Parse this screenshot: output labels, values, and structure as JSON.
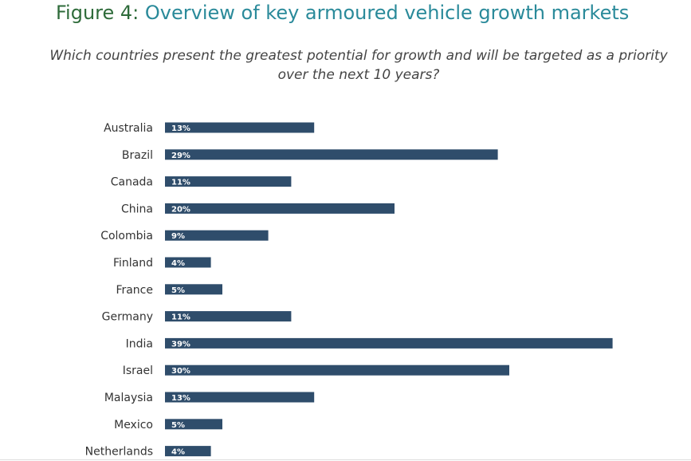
{
  "header": {
    "figure_label": "Figure 4:",
    "title": "Overview of key armoured vehicle growth markets",
    "subtitle": "Which countries present the greatest potential for growth and will be targeted as a priority over the next 10 years?"
  },
  "colors": {
    "bar": "#2f4d6b",
    "figure_label": "#2e6b3a",
    "title": "#2a8a9a"
  },
  "chart_data": {
    "type": "bar",
    "orientation": "horizontal",
    "categories": [
      "Australia",
      "Brazil",
      "Canada",
      "China",
      "Colombia",
      "Finland",
      "France",
      "Germany",
      "India",
      "Israel",
      "Malaysia",
      "Mexico",
      "Netherlands"
    ],
    "values": [
      13,
      29,
      11,
      20,
      9,
      4,
      5,
      11,
      39,
      30,
      13,
      5,
      4
    ],
    "value_labels": [
      "13%",
      "29%",
      "11%",
      "20%",
      "9%",
      "4%",
      "5%",
      "11%",
      "39%",
      "30%",
      "13%",
      "5%",
      "4%"
    ],
    "unit": "%",
    "grid": false,
    "legend": "none"
  }
}
